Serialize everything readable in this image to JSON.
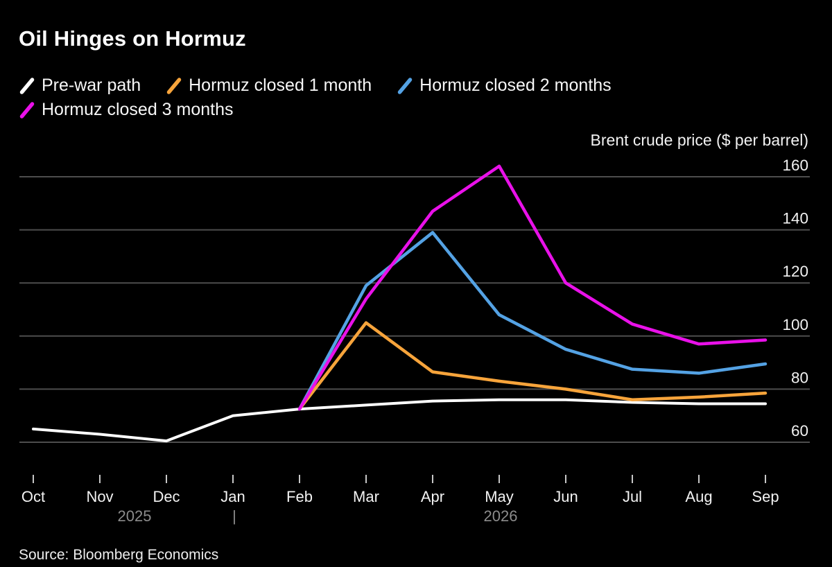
{
  "title": "Oil Hinges on Hormuz",
  "source": "Source: Bloomberg Economics",
  "axis_title": "Brent crude price ($ per barrel)",
  "legend": {
    "rows": [
      [
        {
          "label": "Pre-war path",
          "color": "#ffffff"
        },
        {
          "label": "Hormuz closed 1 month",
          "color": "#f7a43b"
        },
        {
          "label": "Hormuz closed 2 months",
          "color": "#54a2e4"
        }
      ],
      [
        {
          "label": "Hormuz closed 3 months",
          "color": "#e911e9"
        }
      ]
    ]
  },
  "colors": {
    "background": "#000000",
    "gridline": "#4d4d4d",
    "tick_label": "#f2f2f2",
    "year_label": "#8c8c8c",
    "tick_mark": "#c8c8c8",
    "title": "#ffffff"
  },
  "chart_data": {
    "type": "line",
    "title": "Oil Hinges on Hormuz",
    "ylabel": "Brent crude price ($ per barrel)",
    "xlabel": "",
    "x": [
      "Oct",
      "Nov",
      "Dec",
      "Jan",
      "Feb",
      "Mar",
      "Apr",
      "May",
      "Jun",
      "Jul",
      "Aug",
      "Sep"
    ],
    "x_years": [
      {
        "label": "2025",
        "position_month_index": 1.5
      },
      {
        "label": "|",
        "position_month_index": 3
      },
      {
        "label": "2026",
        "position_month_index": 7
      }
    ],
    "y_ticks": [
      160,
      140,
      120,
      100,
      80,
      60
    ],
    "ylim": [
      56,
      168
    ],
    "grid": "horizontal",
    "legend_position": "top-left",
    "series": [
      {
        "name": "Pre-war path",
        "color": "#ffffff",
        "width": 4,
        "values": [
          65,
          63,
          60.5,
          70,
          72.5,
          74,
          75.5,
          76,
          76,
          75,
          74.5,
          74.5
        ]
      },
      {
        "name": "Hormuz closed 1 month",
        "color": "#f7a43b",
        "width": 4.5,
        "values": [
          null,
          null,
          null,
          null,
          72.5,
          105,
          86.5,
          83,
          80,
          76,
          77,
          78.5
        ]
      },
      {
        "name": "Hormuz closed 2 months",
        "color": "#54a2e4",
        "width": 4.5,
        "values": [
          null,
          null,
          null,
          null,
          72.5,
          119,
          139,
          108,
          95,
          87.5,
          86,
          89.5
        ]
      },
      {
        "name": "Hormuz closed 3 months",
        "color": "#e911e9",
        "width": 4.5,
        "values": [
          null,
          null,
          null,
          null,
          72.5,
          114,
          147,
          164,
          120,
          104.5,
          97,
          98.5
        ]
      }
    ]
  }
}
